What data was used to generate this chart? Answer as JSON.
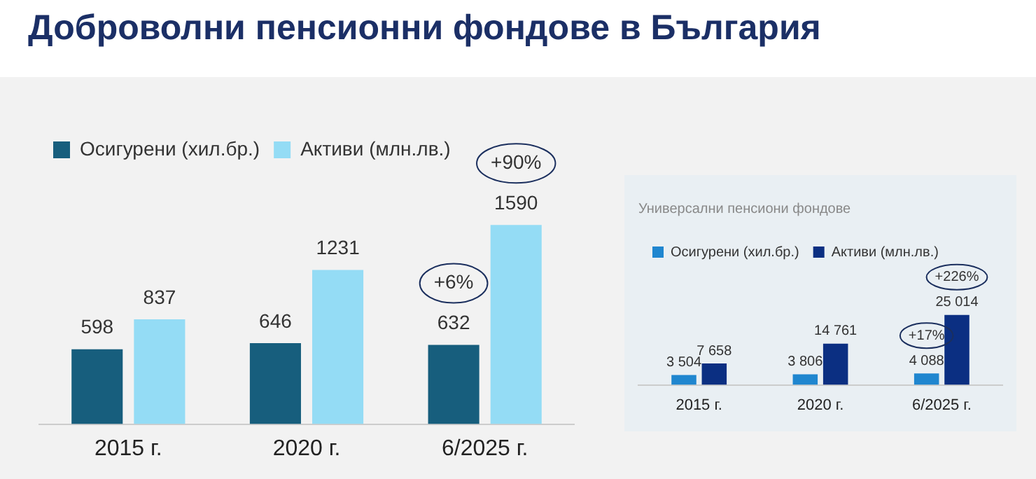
{
  "chart_data": [
    {
      "type": "bar",
      "title": "Доброволни пенсионни фондове в България",
      "categories": [
        "2015 г.",
        "2020 г.",
        "6/2025 г."
      ],
      "series": [
        {
          "name": "Осигурени (хил.бр.)",
          "color": "#175e7d",
          "values": [
            598,
            646,
            632
          ]
        },
        {
          "name": "Активи (млн.лв.)",
          "color": "#94dcf5",
          "values": [
            837,
            1231,
            1590
          ]
        }
      ],
      "data_labels": true,
      "legend": "top left",
      "grid": false,
      "annotations": [
        {
          "text": "+6%",
          "x": "6/2025 г.",
          "y": 632
        },
        {
          "text": "+90%",
          "x": "6/2025 г.",
          "y": 1590
        }
      ]
    },
    {
      "type": "bar",
      "title": "Универсални пенсиони фондове",
      "categories": [
        "2015 г.",
        "2020 г.",
        "6/2025 г."
      ],
      "series": [
        {
          "name": "Осигурени (хил.бр.)",
          "color": "#1f86cf",
          "values": [
            3504,
            3806,
            4088
          ],
          "value_labels": [
            "3 504",
            "3 806",
            "4 088"
          ]
        },
        {
          "name": "Активи (млн.лв.)",
          "color": "#0b2f82",
          "values": [
            7658,
            14761,
            25014
          ],
          "value_labels": [
            "7 658",
            "14 761",
            "25 014"
          ]
        }
      ],
      "legend": "top left",
      "grid": false,
      "annotations": [
        {
          "text": "+17%",
          "x": "6/2025 г.",
          "y": 4088
        },
        {
          "text": "+226%",
          "x": "6/2025 г.",
          "y": 25014
        }
      ]
    }
  ]
}
